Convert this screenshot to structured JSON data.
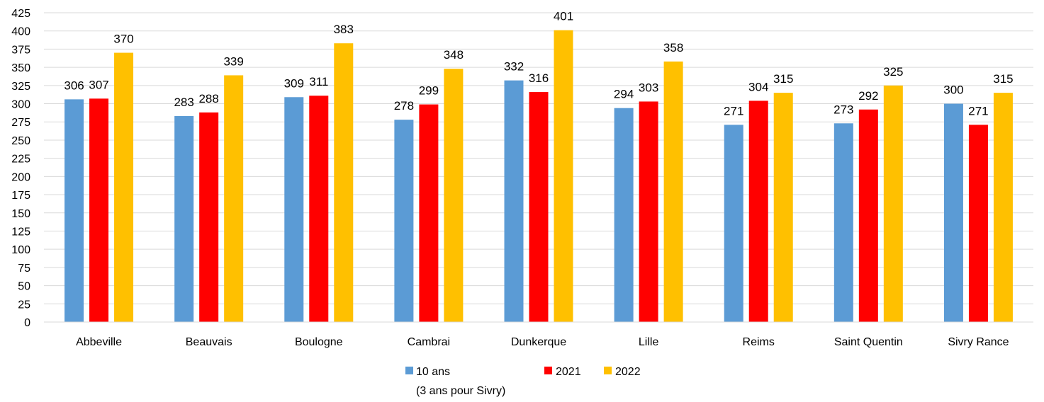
{
  "chart_data": {
    "type": "bar",
    "title": "",
    "xlabel": "",
    "ylabel": "",
    "categories": [
      "Abbeville",
      "Beauvais",
      "Boulogne",
      "Cambrai",
      "Dunkerque",
      "Lille",
      "Reims",
      "Saint Quentin",
      "Sivry Rance"
    ],
    "series": [
      {
        "name": "10 ans",
        "name_line2": "(3 ans pour Sivry)",
        "color": "#5b9bd5",
        "values": [
          306,
          283,
          309,
          278,
          332,
          294,
          271,
          273,
          300
        ]
      },
      {
        "name": "2021",
        "color": "#ff0000",
        "values": [
          307,
          288,
          311,
          299,
          316,
          303,
          304,
          292,
          271
        ]
      },
      {
        "name": "2022",
        "color": "#ffc000",
        "values": [
          370,
          339,
          383,
          348,
          401,
          358,
          315,
          325,
          315
        ]
      }
    ],
    "ylim": [
      0,
      425
    ],
    "yticks": [
      0,
      25,
      50,
      75,
      100,
      125,
      150,
      175,
      200,
      225,
      250,
      275,
      300,
      325,
      350,
      375,
      400,
      425
    ],
    "grid": true,
    "data_labels": true,
    "legend_position": "bottom"
  }
}
